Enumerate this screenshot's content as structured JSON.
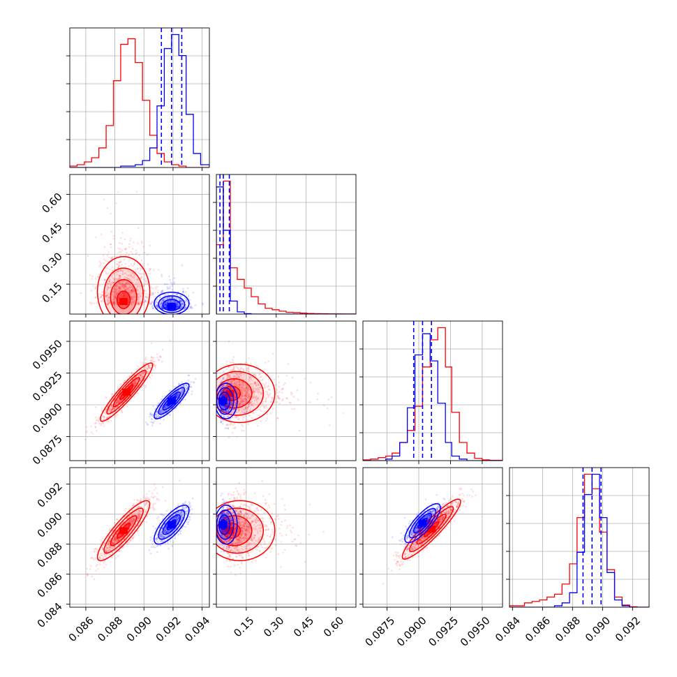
{
  "chart_data": {
    "type": "scatter",
    "title": "",
    "grid": true,
    "series_colors": {
      "red": "#ff0000",
      "blue": "#0000ff"
    },
    "params": [
      {
        "id": "p0",
        "range": [
          0.0849,
          0.0945
        ],
        "tick_values": [
          0.086,
          0.088,
          0.09,
          0.092,
          0.094
        ],
        "tick_labels": [
          "0.086",
          "0.088",
          "0.090",
          "0.092",
          "0.094"
        ]
      },
      {
        "id": "p1",
        "range": [
          0.0,
          0.7
        ],
        "tick_values": [
          0.15,
          0.3,
          0.45,
          0.6
        ],
        "tick_labels": [
          "0.15",
          "0.30",
          "0.45",
          "0.60"
        ]
      },
      {
        "id": "p2",
        "range": [
          0.0856,
          0.0966
        ],
        "tick_values": [
          0.0875,
          0.09,
          0.0925,
          0.095
        ],
        "tick_labels": [
          "0.0875",
          "0.0900",
          "0.0925",
          "0.0950"
        ]
      },
      {
        "id": "p3",
        "range": [
          0.0838,
          0.0931
        ],
        "tick_values": [
          0.084,
          0.086,
          0.088,
          0.09,
          0.092
        ],
        "tick_labels": [
          "0.084",
          "0.086",
          "0.088",
          "0.090",
          "0.092"
        ]
      }
    ],
    "histograms": [
      {
        "param": 0,
        "bin_edges": [
          0.0849,
          0.0854,
          0.0859,
          0.0864,
          0.0869,
          0.0874,
          0.0879,
          0.0884,
          0.0889,
          0.0894,
          0.0899,
          0.0904,
          0.0909,
          0.0914,
          0.0919,
          0.0924,
          0.0929,
          0.0934,
          0.0939,
          0.0945
        ],
        "red": [
          1,
          2,
          4,
          7,
          14,
          30,
          62,
          88,
          92,
          75,
          48,
          23,
          10,
          4,
          2,
          1,
          0,
          0,
          0
        ],
        "blue": [
          0,
          0,
          0,
          0,
          0,
          0,
          0,
          1,
          1,
          2,
          5,
          14,
          44,
          85,
          95,
          80,
          38,
          10,
          2
        ],
        "blue_quantiles": [
          0.0912,
          0.0919,
          0.0926
        ]
      },
      {
        "param": 1,
        "bin_edges": [
          0.0,
          0.035,
          0.07,
          0.105,
          0.14,
          0.175,
          0.21,
          0.245,
          0.28,
          0.315,
          0.35,
          0.385,
          0.42,
          0.455,
          0.49,
          0.525,
          0.56,
          0.595,
          0.63,
          0.665,
          0.7
        ],
        "red": [
          48,
          92,
          32,
          24,
          18,
          12,
          7,
          4,
          3,
          2,
          1.2,
          1,
          0.7,
          0.4,
          0.3,
          0.2,
          0.1,
          0.1,
          0.05,
          0.05
        ],
        "blue": [
          88,
          58,
          9,
          1.5,
          0.3,
          0,
          0,
          0,
          0,
          0,
          0,
          0,
          0,
          0,
          0,
          0,
          0,
          0,
          0,
          0
        ],
        "blue_quantiles": [
          0.018,
          0.035,
          0.065
        ]
      },
      {
        "param": 2,
        "bin_edges": [
          0.0856,
          0.0862,
          0.0868,
          0.0874,
          0.0879,
          0.0885,
          0.0891,
          0.0897,
          0.0903,
          0.0909,
          0.0915,
          0.0921,
          0.0926,
          0.0932,
          0.0938,
          0.0944,
          0.095,
          0.0956,
          0.0966
        ],
        "red": [
          0.5,
          1,
          2,
          3,
          5,
          12,
          20,
          36,
          62,
          80,
          88,
          62,
          32,
          12,
          5,
          1.5,
          0.5,
          0.2
        ],
        "blue": [
          0,
          0,
          0,
          1,
          3,
          12,
          35,
          70,
          84,
          66,
          38,
          12,
          3,
          1,
          0,
          0,
          0,
          0
        ],
        "blue_quantiles": [
          0.0896,
          0.0903,
          0.091
        ]
      },
      {
        "param": 3,
        "bin_edges": [
          0.0838,
          0.0843,
          0.0848,
          0.0853,
          0.0858,
          0.0863,
          0.0868,
          0.0873,
          0.0878,
          0.0883,
          0.0888,
          0.0893,
          0.0898,
          0.0903,
          0.0908,
          0.0913,
          0.0918,
          0.0923,
          0.0931
        ],
        "red": [
          1,
          1,
          3,
          4,
          5,
          7,
          9,
          16,
          30,
          62,
          92,
          82,
          52,
          26,
          7,
          1.5,
          0.3,
          0
        ],
        "blue": [
          0,
          0,
          0,
          0,
          0,
          0,
          1,
          3,
          10,
          38,
          78,
          92,
          62,
          24,
          5,
          1,
          0,
          0
        ],
        "blue_quantiles": [
          0.0887,
          0.0893,
          0.0899
        ]
      }
    ],
    "pairs": [
      {
        "x_param": 0,
        "y_param": 1,
        "red": {
          "center": [
            0.0886,
            0.085
          ],
          "sd": [
            0.0009,
            0.11
          ],
          "corr": 0.0
        },
        "blue": {
          "center": [
            0.0919,
            0.045
          ],
          "sd": [
            0.0006,
            0.035
          ],
          "corr": 0.0
        }
      },
      {
        "x_param": 0,
        "y_param": 2,
        "red": {
          "center": [
            0.0888,
            0.091
          ],
          "sd": [
            0.0009,
            0.00115
          ],
          "corr": 0.93
        },
        "blue": {
          "center": [
            0.0919,
            0.0903
          ],
          "sd": [
            0.0006,
            0.0007
          ],
          "corr": 0.85
        }
      },
      {
        "x_param": 1,
        "y_param": 2,
        "red": {
          "center": [
            0.09,
            0.0909
          ],
          "sd": [
            0.11,
            0.00115
          ],
          "corr": 0.0
        },
        "blue": {
          "center": [
            0.04,
            0.0903
          ],
          "sd": [
            0.035,
            0.0007
          ],
          "corr": 0.0
        }
      },
      {
        "x_param": 0,
        "y_param": 3,
        "red": {
          "center": [
            0.0886,
            0.0889
          ],
          "sd": [
            0.0009,
            0.001
          ],
          "corr": 0.88
        },
        "blue": {
          "center": [
            0.0919,
            0.0893
          ],
          "sd": [
            0.0006,
            0.00065
          ],
          "corr": 0.75
        }
      },
      {
        "x_param": 1,
        "y_param": 3,
        "red": {
          "center": [
            0.09,
            0.0889
          ],
          "sd": [
            0.11,
            0.001
          ],
          "corr": 0.0
        },
        "blue": {
          "center": [
            0.04,
            0.0893
          ],
          "sd": [
            0.035,
            0.00065
          ],
          "corr": 0.0
        }
      },
      {
        "x_param": 2,
        "y_param": 3,
        "red": {
          "center": [
            0.091,
            0.089
          ],
          "sd": [
            0.00115,
            0.001
          ],
          "corr": 0.92
        },
        "blue": {
          "center": [
            0.0903,
            0.0894
          ],
          "sd": [
            0.0007,
            0.00065
          ],
          "corr": 0.8
        }
      }
    ]
  }
}
